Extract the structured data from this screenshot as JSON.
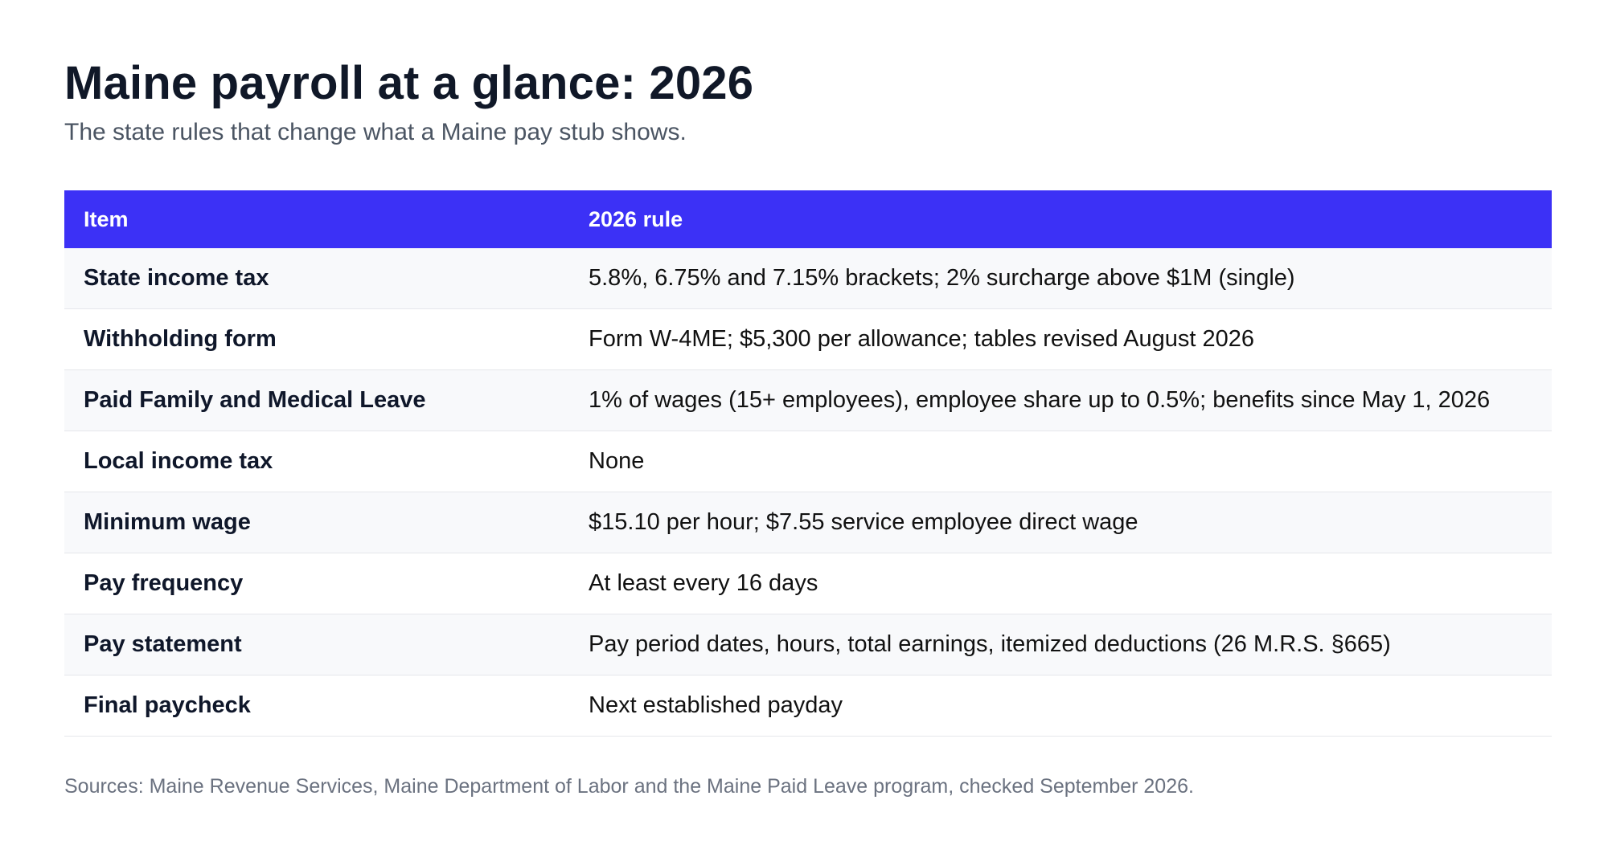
{
  "title": "Maine payroll at a glance: 2026",
  "subtitle": "The state rules that change what a Maine pay stub shows.",
  "colors": {
    "header_background": "#3c31f6",
    "header_text": "#ffffff",
    "title_text": "#101828",
    "muted_text": "#4b5563",
    "row_alt_background": "#f8f9fb"
  },
  "table": {
    "headers": [
      "Item",
      "2026 rule"
    ],
    "rows": [
      {
        "item": "State income tax",
        "rule": "5.8%, 6.75% and 7.15% brackets; 2% surcharge above $1M (single)"
      },
      {
        "item": "Withholding form",
        "rule": "Form W-4ME; $5,300 per allowance; tables revised August 2026"
      },
      {
        "item": "Paid Family and Medical Leave",
        "rule": "1% of wages (15+ employees), employee share up to 0.5%; benefits since May 1, 2026"
      },
      {
        "item": "Local income tax",
        "rule": "None"
      },
      {
        "item": "Minimum wage",
        "rule": "$15.10 per hour; $7.55 service employee direct wage"
      },
      {
        "item": "Pay frequency",
        "rule": "At least every 16 days"
      },
      {
        "item": "Pay statement",
        "rule": "Pay period dates, hours, total earnings, itemized deductions (26 M.R.S. §665)"
      },
      {
        "item": "Final paycheck",
        "rule": "Next established payday"
      }
    ]
  },
  "sources": "Sources: Maine Revenue Services, Maine Department of Labor and the Maine Paid Leave program, checked September 2026."
}
